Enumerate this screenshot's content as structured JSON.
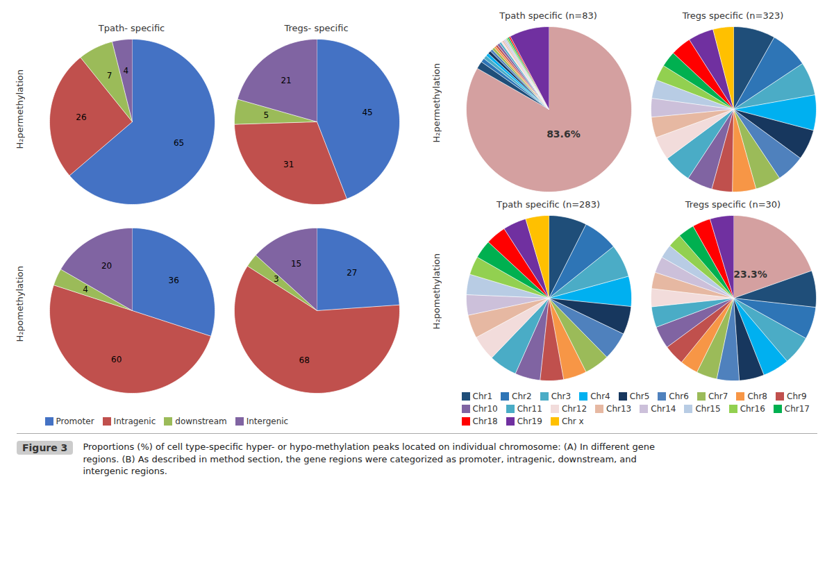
{
  "chart_data": [
    {
      "type": "pie",
      "title": "Tpath- specific",
      "ylabel": "H₂permethylation",
      "categories": [
        "Promoter",
        "Intragenic",
        "downstream",
        "Intergenic"
      ],
      "values": [
        65,
        26,
        7,
        4
      ],
      "colors": [
        "#4472C4",
        "#C0504D",
        "#9BBB59",
        "#8064A2"
      ],
      "data_labels": true
    },
    {
      "type": "pie",
      "title": "Tregs- specific",
      "categories": [
        "Promoter",
        "Intragenic",
        "downstream",
        "Intergenic"
      ],
      "values": [
        45,
        31,
        5,
        21
      ],
      "colors": [
        "#4472C4",
        "#C0504D",
        "#9BBB59",
        "#8064A2"
      ],
      "data_labels": true
    },
    {
      "type": "pie",
      "ylabel": "H₂pomethylation",
      "categories": [
        "Promoter",
        "Intragenic",
        "downstream",
        "Intergenic"
      ],
      "values": [
        36,
        60,
        4,
        20
      ],
      "colors": [
        "#4472C4",
        "#C0504D",
        "#9BBB59",
        "#8064A2"
      ],
      "data_labels": true
    },
    {
      "type": "pie",
      "categories": [
        "Promoter",
        "Intragenic",
        "downstream",
        "Intergenic"
      ],
      "values": [
        27,
        68,
        3,
        15
      ],
      "colors": [
        "#4472C4",
        "#C0504D",
        "#9BBB59",
        "#8064A2"
      ],
      "data_labels": true,
      "legend": "bottom"
    },
    {
      "type": "pie",
      "title": "Tpath specific (n=83)",
      "ylabel": "H₂permethylation",
      "categories": [
        null,
        "Chr1",
        "Chr2",
        "Chr3",
        "Chr4",
        "Chr5",
        "Chr6",
        "Chr7",
        "Chr8",
        "Chr9",
        "Chr10",
        "Chr11",
        "Chr12",
        "Chr13",
        "Chr14",
        "Chr15",
        "Chr16",
        "Chr17",
        "Chr18",
        "Chr19"
      ],
      "values": [
        83.6,
        1.5,
        0.8,
        0.7,
        0.6,
        0.6,
        0.5,
        0.5,
        0.4,
        0.4,
        0.5,
        0.4,
        0.3,
        0.3,
        0.3,
        0.3,
        0.3,
        0.3,
        0.3,
        7.8
      ],
      "colors": [
        "#D4A0A0",
        "#1F4E79",
        "#2E75B6",
        "#4BACC6",
        "#00B0F0",
        "#17375E",
        "#4F81BD",
        "#9BBB59",
        "#F79646",
        "#C0504D",
        "#8064A2",
        "#4AACC6",
        "#F2DCDB",
        "#E6B8A2",
        "#CCC0DA",
        "#B8CCE4",
        "#92D050",
        "#00B050",
        "#FF0000",
        "#7030A0"
      ],
      "annotations": [
        "83.6%"
      ]
    },
    {
      "type": "pie",
      "title": "Tregs specific (n=323)",
      "categories": [
        "Chr1",
        "Chr2",
        "Chr3",
        "Chr4",
        "Chr5",
        "Chr6",
        "Chr7",
        "Chr8",
        "Chr9",
        "Chr10",
        "Chr11",
        "Chr12",
        "Chr13",
        "Chr14",
        "Chr15",
        "Chr16",
        "Chr17",
        "Chr18",
        "Chr19",
        "Chr x"
      ],
      "values": [
        8.5,
        7.8,
        6.8,
        7.2,
        6.2,
        5.8,
        5.2,
        4.8,
        4.2,
        5.2,
        5.8,
        4.8,
        4.2,
        3.8,
        3.8,
        3.2,
        3.2,
        4.2,
        5.2,
        4.2
      ],
      "colors": [
        "#1F4E79",
        "#2E75B6",
        "#4BACC6",
        "#00B0F0",
        "#17375E",
        "#4F81BD",
        "#9BBB59",
        "#F79646",
        "#C0504D",
        "#8064A2",
        "#4AACC6",
        "#F2DCDB",
        "#E6B8A2",
        "#CCC0DA",
        "#B8CCE4",
        "#92D050",
        "#00B050",
        "#FF0000",
        "#7030A0",
        "#FFC000"
      ]
    },
    {
      "type": "pie",
      "title": "Tpath specific (n=283)",
      "ylabel": "H₂pomethylation",
      "categories": [
        "Chr1",
        "Chr2",
        "Chr3",
        "Chr4",
        "Chr5",
        "Chr6",
        "Chr7",
        "Chr8",
        "Chr9",
        "Chr10",
        "Chr11",
        "Chr12",
        "Chr13",
        "Chr14",
        "Chr15",
        "Chr16",
        "Chr17",
        "Chr18",
        "Chr19",
        "Chr x"
      ],
      "values": [
        7.8,
        7.2,
        6.8,
        6.2,
        5.8,
        5.8,
        5.2,
        4.8,
        4.8,
        5.2,
        5.8,
        5.2,
        4.8,
        4.2,
        4.2,
        3.8,
        3.8,
        4.2,
        4.8,
        4.8
      ],
      "colors": [
        "#1F4E79",
        "#2E75B6",
        "#4BACC6",
        "#00B0F0",
        "#17375E",
        "#4F81BD",
        "#9BBB59",
        "#F79646",
        "#C0504D",
        "#8064A2",
        "#4AACC6",
        "#F2DCDB",
        "#E6B8A2",
        "#CCC0DA",
        "#B8CCE4",
        "#92D050",
        "#00B050",
        "#FF0000",
        "#7030A0",
        "#FFC000"
      ],
      "legend": "bottom"
    },
    {
      "type": "pie",
      "title": "Tregs specific (n=30)",
      "categories": [
        null,
        "Chr1",
        "Chr2",
        "Chr3",
        "Chr4",
        "Chr5",
        "Chr6",
        "Chr7",
        "Chr8",
        "Chr9",
        "Chr10",
        "Chr11",
        "Chr12",
        "Chr13",
        "Chr14",
        "Chr15",
        "Chr16",
        "Chr17",
        "Chr18",
        "Chr19"
      ],
      "values": [
        23.3,
        8.5,
        7.5,
        6.8,
        6.2,
        5.8,
        5.2,
        4.8,
        4.2,
        4.8,
        5.2,
        4.8,
        4.2,
        3.8,
        3.8,
        3.2,
        3.2,
        3.8,
        4.2,
        5.5
      ],
      "colors": [
        "#D4A0A0",
        "#1F4E79",
        "#2E75B6",
        "#4BACC6",
        "#00B0F0",
        "#17375E",
        "#4F81BD",
        "#9BBB59",
        "#F79646",
        "#C0504D",
        "#8064A2",
        "#4AACC6",
        "#F2DCDB",
        "#E6B8A2",
        "#CCC0DA",
        "#B8CCE4",
        "#92D050",
        "#00B050",
        "#FF0000",
        "#7030A0"
      ],
      "annotations": [
        "23.3%"
      ]
    }
  ],
  "title": "Figure 3",
  "caption": "Proportions (%) of cell type-specific hyper- or hypo-methylation peaks located on individual chromosome: (A) In different gene\nregions. (B) As described in method section, the gene regions were categorized as promoter, intragenic, downstream, and\nintergenic regions."
}
